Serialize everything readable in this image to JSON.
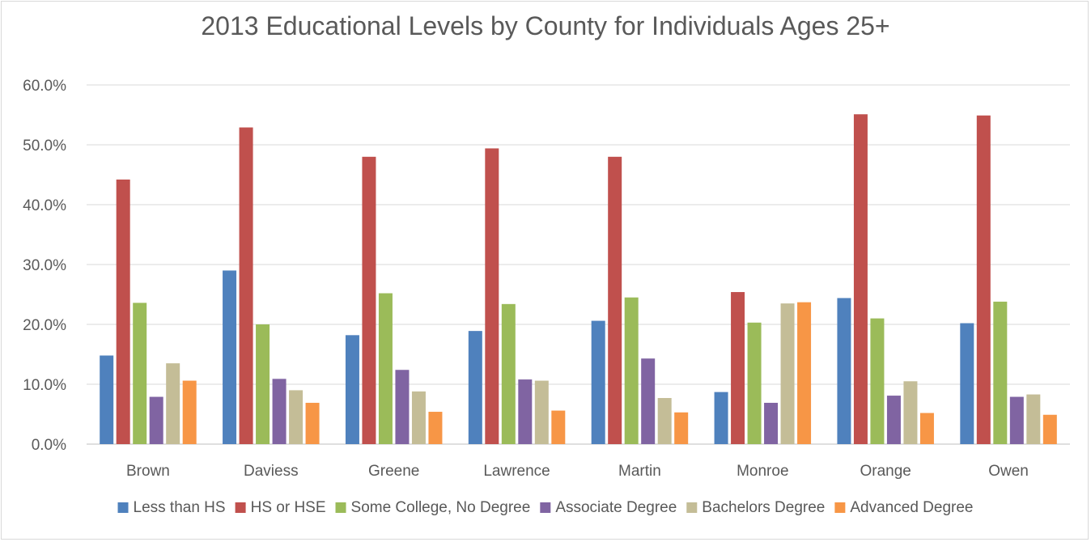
{
  "chart_data": {
    "type": "bar",
    "title": "2013 Educational Levels by County for Individuals Ages 25+",
    "xlabel": "",
    "ylabel": "",
    "ylim": [
      0,
      60
    ],
    "yticks": [
      "0.0%",
      "10.0%",
      "20.0%",
      "30.0%",
      "40.0%",
      "50.0%",
      "60.0%"
    ],
    "grid": true,
    "legend_position": "bottom",
    "categories": [
      "Brown",
      "Daviess",
      "Greene",
      "Lawrence",
      "Martin",
      "Monroe",
      "Orange",
      "Owen"
    ],
    "series": [
      {
        "name": "Less than HS",
        "color": "#4f81bd",
        "values": [
          14.8,
          29.0,
          18.2,
          18.9,
          20.6,
          8.7,
          24.4,
          20.2
        ]
      },
      {
        "name": "HS or HSE",
        "color": "#c0504d",
        "values": [
          44.2,
          52.9,
          48.0,
          49.4,
          48.0,
          25.4,
          55.1,
          54.9
        ]
      },
      {
        "name": "Some College, No Degree",
        "color": "#9bbb59",
        "values": [
          23.6,
          20.0,
          25.2,
          23.4,
          24.5,
          20.3,
          21.0,
          23.8
        ]
      },
      {
        "name": "Associate Degree",
        "color": "#8064a2",
        "values": [
          7.9,
          10.9,
          12.4,
          10.8,
          14.3,
          6.9,
          8.1,
          7.9
        ]
      },
      {
        "name": "Bachelors Degree",
        "color": "#c4bd97",
        "values": [
          13.5,
          9.0,
          8.8,
          10.6,
          7.7,
          23.5,
          10.5,
          8.3
        ]
      },
      {
        "name": "Advanced Degree",
        "color": "#f79646",
        "values": [
          10.6,
          6.9,
          5.4,
          5.6,
          5.3,
          23.7,
          5.2,
          4.9
        ]
      }
    ]
  }
}
